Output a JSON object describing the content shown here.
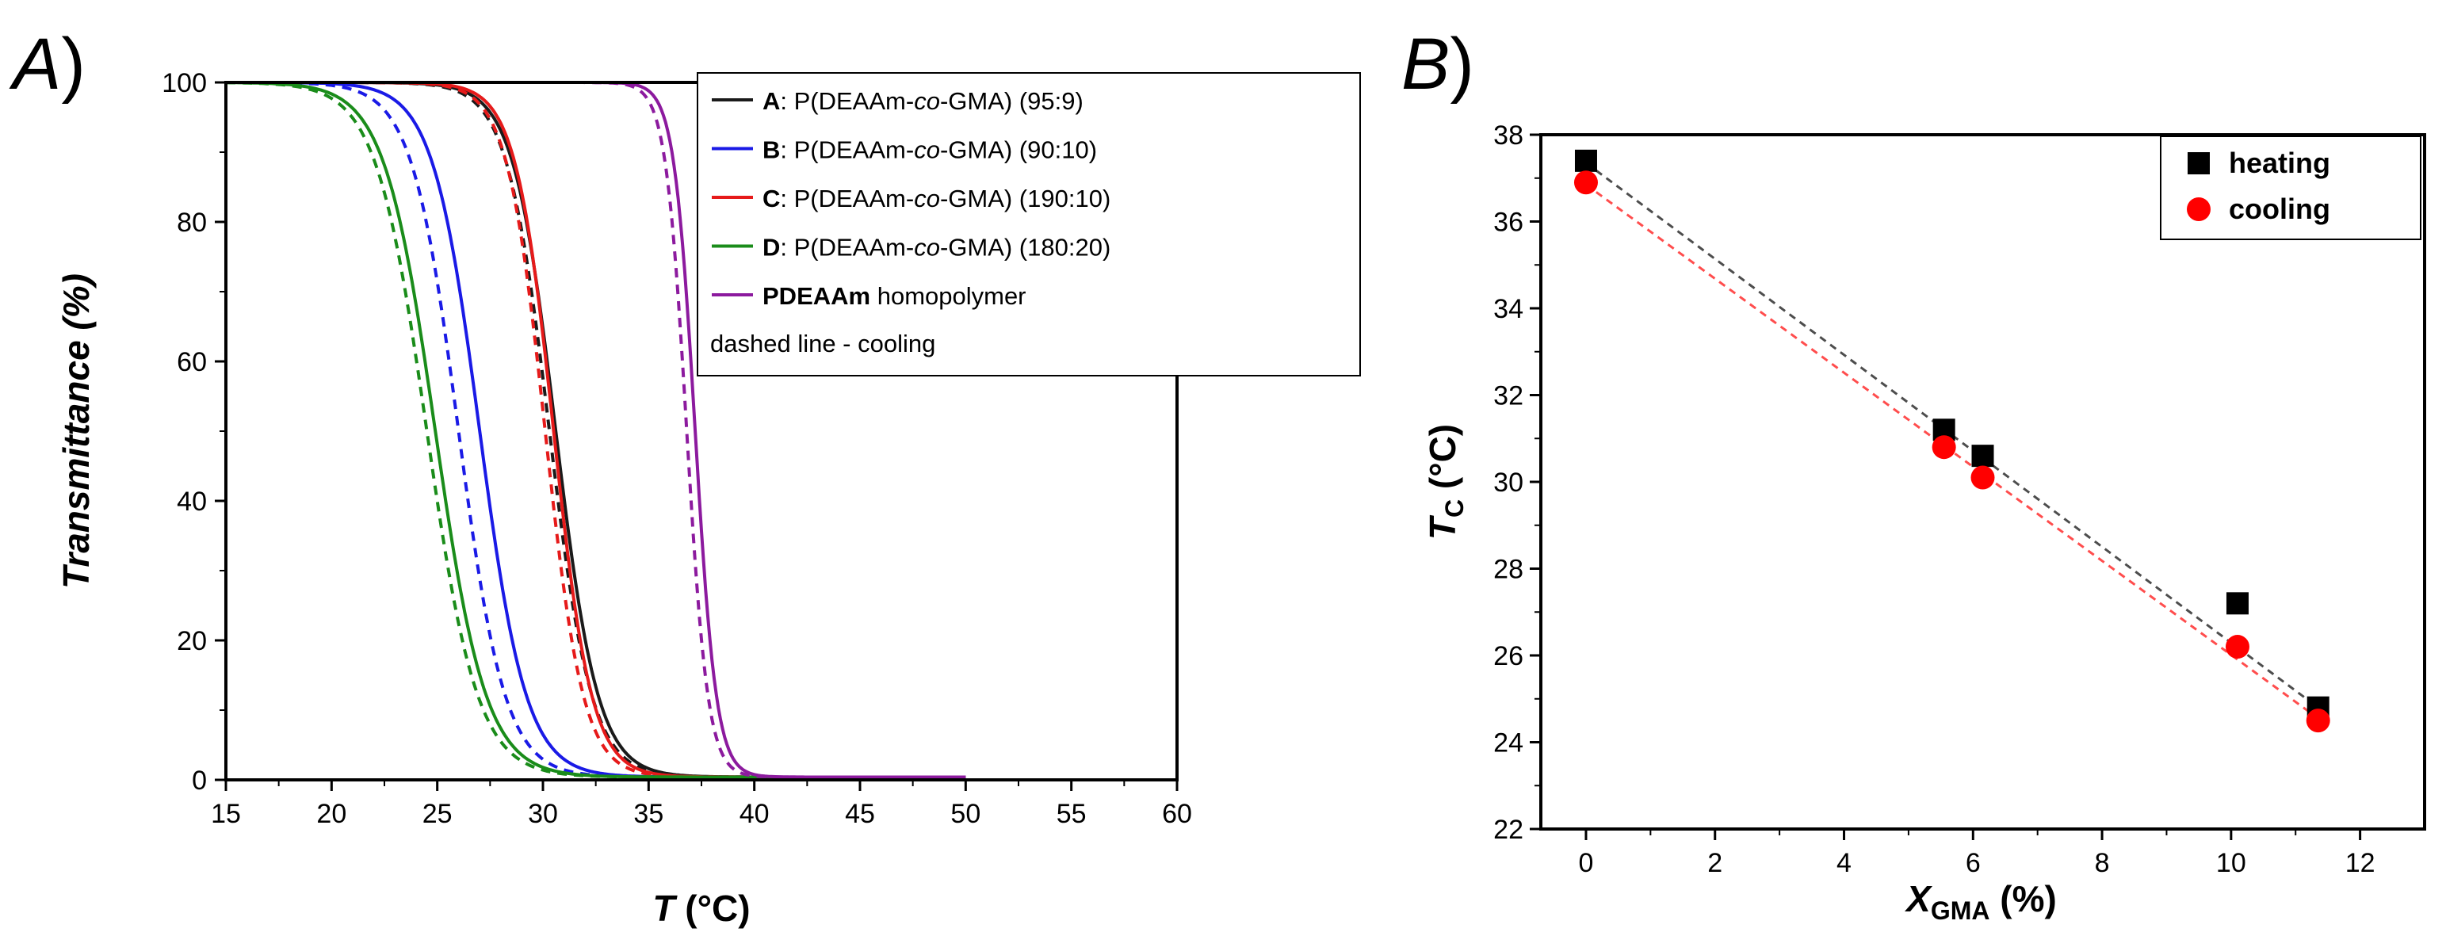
{
  "chart_data": [
    {
      "panel": "A)",
      "panel_letter": "A",
      "panel_paren": ")",
      "type": "line",
      "xlabel_var": "T",
      "xlabel_unit": " (°C)",
      "ylabel": "Transmittance (%)",
      "xlim": [
        15,
        60
      ],
      "ylim": [
        0,
        100
      ],
      "xticks": [
        "15",
        "20",
        "25",
        "30",
        "35",
        "40",
        "45",
        "50",
        "55",
        "60"
      ],
      "yticks": [
        "0",
        "20",
        "40",
        "60",
        "80",
        "100"
      ],
      "series": [
        {
          "name": "A",
          "label_bold": "A",
          "label_pre": ": P(DEAAm-",
          "label_italic": "co",
          "label_post": "-GMA) (95:9)",
          "color": "#1a1a1a",
          "heating_tc": 30.6,
          "cooling_tc": 30.3,
          "width": 1.0
        },
        {
          "name": "B",
          "label_bold": "B",
          "label_pre": ": P(DEAAm-",
          "label_italic": "co",
          "label_post": "-GMA) (90:10)",
          "color": "#1a1ae6",
          "heating_tc": 27.0,
          "cooling_tc": 26.0,
          "width": 1.1
        },
        {
          "name": "C",
          "label_bold": "C",
          "label_pre": ": P(DEAAm-",
          "label_italic": "co",
          "label_post": "-GMA) (190:10)",
          "color": "#e61a1a",
          "heating_tc": 30.5,
          "cooling_tc": 30.1,
          "width": 0.9
        },
        {
          "name": "D",
          "label_bold": "D",
          "label_pre": ": P(DEAAm-",
          "label_italic": "co",
          "label_post": "-GMA) (180:20)",
          "color": "#1a8c1a",
          "heating_tc": 24.9,
          "cooling_tc": 24.5,
          "width": 1.2
        },
        {
          "name": "PDEAAm",
          "label_bold": "PDEAAm",
          "label_pre": " homopolymer",
          "label_italic": "",
          "label_post": "",
          "color": "#8c1a9e",
          "heating_tc": 37.2,
          "cooling_tc": 36.8,
          "width": 0.5
        }
      ],
      "legend_note": "dashed line - cooling",
      "legend_position": "top-right"
    },
    {
      "panel": "B)",
      "panel_letter": "B",
      "panel_paren": ")",
      "type": "scatter",
      "xlabel_var": "X",
      "xlabel_sub": "GMA",
      "xlabel_unit": " (%)",
      "ylabel_var": "T",
      "ylabel_sub": "C",
      "ylabel_unit": " (°C)",
      "xlim": [
        -0.7,
        13
      ],
      "ylim": [
        22,
        38
      ],
      "xticks": [
        "0",
        "2",
        "4",
        "6",
        "8",
        "10",
        "12"
      ],
      "yticks": [
        "22",
        "24",
        "26",
        "28",
        "30",
        "32",
        "34",
        "36",
        "38"
      ],
      "x": [
        0,
        5.55,
        6.15,
        10.1,
        11.35
      ],
      "series": [
        {
          "name": "heating",
          "marker": "square",
          "color": "#000000",
          "fit_color": "#4d4d4d",
          "values": [
            37.4,
            31.2,
            30.6,
            27.2,
            24.8
          ],
          "fit": [
            37.35,
            24.8
          ]
        },
        {
          "name": "cooling",
          "marker": "circle",
          "color": "#ff0000",
          "fit_color": "#ff4d4d",
          "values": [
            36.9,
            30.8,
            30.1,
            26.2,
            24.5
          ],
          "fit": [
            36.85,
            24.55
          ]
        }
      ],
      "fit_x": [
        0,
        11.35
      ],
      "legend_position": "top-right"
    }
  ]
}
